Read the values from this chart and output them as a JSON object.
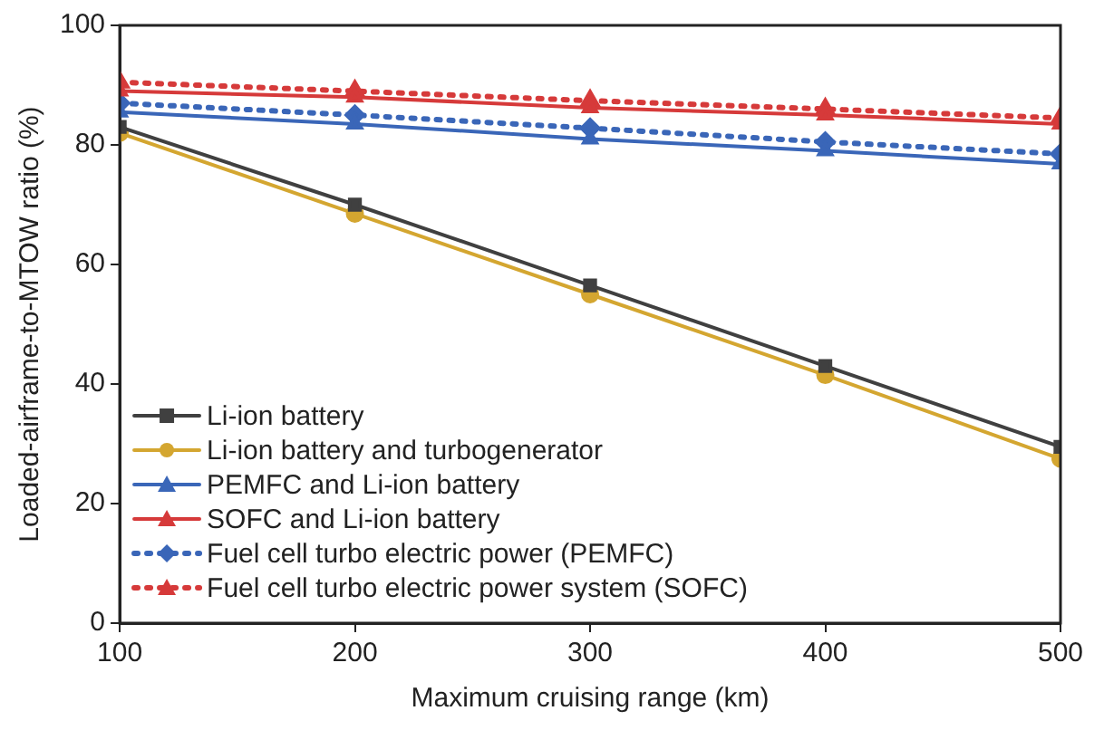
{
  "chart_data": {
    "type": "line",
    "xlabel": "Maximum cruising range (km)",
    "ylabel": "Loaded-airframe-to-MTOW ratio (%)",
    "x": [
      100,
      200,
      300,
      400,
      500
    ],
    "series": [
      {
        "name": "Li-ion battery",
        "color": "#404040",
        "marker": "square",
        "line_style": "solid",
        "values": [
          83,
          70,
          56.5,
          43,
          29.5
        ]
      },
      {
        "name": "Li-ion battery and turbogenerator",
        "color": "#d4a630",
        "marker": "circle",
        "line_style": "solid",
        "values": [
          82,
          68.5,
          55,
          41.5,
          27.5
        ]
      },
      {
        "name": "PEMFC and Li-ion battery",
        "color": "#3a66b8",
        "marker": "triangle",
        "line_style": "solid",
        "values": [
          85.5,
          83.5,
          81,
          79,
          76.8
        ]
      },
      {
        "name": "SOFC and Li-ion battery",
        "color": "#d63a3a",
        "marker": "triangle",
        "line_style": "solid",
        "values": [
          89,
          88,
          86.2,
          85,
          83.5
        ]
      },
      {
        "name": "Fuel cell turbo electric power (PEMFC)",
        "color": "#3a66b8",
        "marker": "diamond",
        "line_style": "dotted",
        "values": [
          87,
          85,
          82.8,
          80.5,
          78.5
        ]
      },
      {
        "name": "Fuel cell turbo electric power system (SOFC)",
        "color": "#d63a3a",
        "marker": "triangle",
        "line_style": "dotted",
        "values": [
          90.5,
          89,
          87.4,
          86,
          84.5
        ]
      }
    ],
    "xlim": [
      100,
      500
    ],
    "xticks": [
      100,
      200,
      300,
      400,
      500
    ],
    "ylim": [
      0,
      100
    ],
    "yticks": [
      0,
      20,
      40,
      60,
      80,
      100
    ],
    "grid": false,
    "legend": "bottom left"
  }
}
